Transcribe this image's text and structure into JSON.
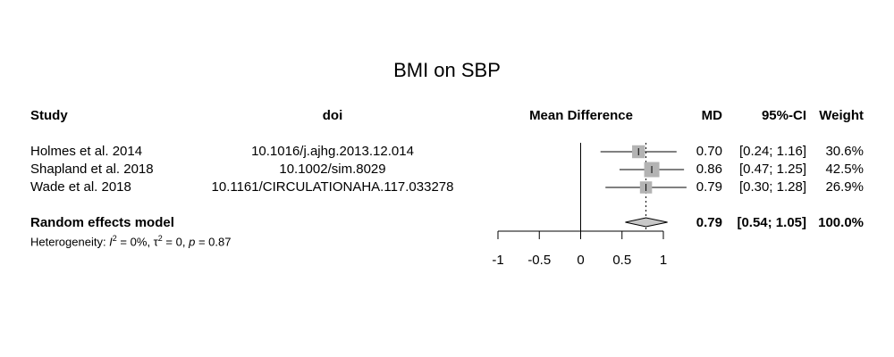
{
  "title": "BMI on SBP",
  "headers": {
    "study": "Study",
    "doi": "doi",
    "effect": "Mean Difference",
    "md": "MD",
    "ci": "95%-CI",
    "weight": "Weight"
  },
  "rows": [
    {
      "study": "Holmes et al. 2014",
      "doi": "10.1016/j.ajhg.2013.12.014",
      "md": "0.70",
      "ci": "[0.24; 1.16]",
      "weight": "30.6%"
    },
    {
      "study": "Shapland et al. 2018",
      "doi": "10.1002/sim.8029",
      "md": "0.86",
      "ci": "[0.47; 1.25]",
      "weight": "42.5%"
    },
    {
      "study": "Wade et al. 2018",
      "doi": "10.1161/CIRCULATIONAHA.117.033278",
      "md": "0.79",
      "ci": "[0.30; 1.28]",
      "weight": "26.9%"
    }
  ],
  "summary": {
    "label": "Random effects model",
    "md": "0.79",
    "ci": "[0.54; 1.05]",
    "weight": "100.0%"
  },
  "heterogeneity": {
    "prefix": "Heterogeneity: ",
    "i2": "0%",
    "tau2": "0",
    "p": "0.87"
  },
  "chart_data": {
    "type": "forest",
    "title": "BMI on SBP",
    "xlabel": "Mean Difference",
    "xlim": [
      -1,
      1
    ],
    "xticks": [
      -1,
      -0.5,
      0,
      0.5,
      1
    ],
    "xtick_labels": [
      "-1",
      "-0.5",
      "0",
      "0.5",
      "1"
    ],
    "null_line": 0,
    "studies": [
      {
        "name": "Holmes et al. 2014",
        "md": 0.7,
        "lower": 0.24,
        "upper": 1.16,
        "weight": 30.6
      },
      {
        "name": "Shapland et al. 2018",
        "md": 0.86,
        "lower": 0.47,
        "upper": 1.25,
        "weight": 42.5
      },
      {
        "name": "Wade et al. 2018",
        "md": 0.79,
        "lower": 0.3,
        "upper": 1.28,
        "weight": 26.9
      }
    ],
    "summary": {
      "name": "Random effects model",
      "md": 0.79,
      "lower": 0.54,
      "upper": 1.05,
      "weight": 100.0
    },
    "colors": {
      "square": "#b3b3b3",
      "diamond": "#c8c8c8",
      "line": "#000000"
    }
  }
}
